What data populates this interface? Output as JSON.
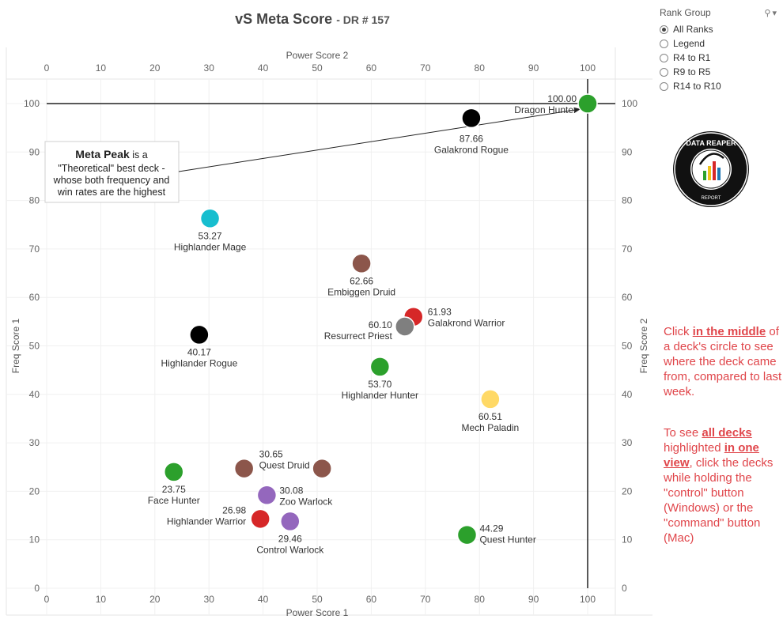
{
  "title": "vS Meta Score",
  "subtitle": "- DR # 157",
  "legend": {
    "heading": "Rank Group",
    "options": [
      "All Ranks",
      "Legend",
      "R4 to R1",
      "R9 to R5",
      "R14 to R10"
    ],
    "selected": "All Ranks"
  },
  "annotation": {
    "bold": "Meta Peak",
    "line1_rest": " is a",
    "line2": "\"Theoretical\" best deck -",
    "line3": "whose both frequency and",
    "line4": "win rates are the highest"
  },
  "logo_text": "DATA REAPER REPORT",
  "notes": {
    "n1": [
      "Click ",
      "in the middle",
      " of a deck's circle to see where the deck came from, compared to last week."
    ],
    "n2": [
      "To see ",
      "all decks ",
      " highlighted ",
      "in one view",
      ", click the decks while holding the \"control\" button (Windows) or the \"command\" button (Mac)"
    ]
  },
  "colors": {
    "hunter": "#2ca02c",
    "rogue": "#000000",
    "mage": "#17becf",
    "druid": "#8c564b",
    "warrior": "#d62728",
    "priest": "#7f7f7f",
    "paladin": "#ffd966",
    "warlock": "#9467bd",
    "note": "#e0464b"
  },
  "chart_data": {
    "type": "scatter",
    "title": "vS Meta Score - DR # 157",
    "xlabel": "Power Score 1",
    "xlabel_top": "Power Score 2",
    "ylabel": "Freq Score 1",
    "ylabel_right": "Freq Score 2",
    "xlim": [
      0,
      100
    ],
    "ylim": [
      0,
      100
    ],
    "xticks": [
      0,
      10,
      20,
      30,
      40,
      50,
      60,
      70,
      80,
      90,
      100
    ],
    "yticks": [
      0,
      10,
      20,
      30,
      40,
      50,
      60,
      70,
      80,
      90,
      100
    ],
    "grid": true,
    "reference_lines": {
      "x": 100,
      "y": 100
    },
    "points": [
      {
        "name": "Dragon Hunter",
        "score": "100.00",
        "x": 100,
        "y": 100,
        "class": "hunter"
      },
      {
        "name": "Galakrond Rogue",
        "score": "87.66",
        "x": 78.5,
        "y": 97,
        "class": "rogue"
      },
      {
        "name": "Highlander Mage",
        "score": "53.27",
        "x": 30.2,
        "y": 76.3,
        "class": "mage"
      },
      {
        "name": "Embiggen Druid",
        "score": "62.66",
        "x": 58.2,
        "y": 67,
        "class": "druid"
      },
      {
        "name": "Galakrond Warrior",
        "score": "61.93",
        "x": 67.8,
        "y": 56,
        "class": "warrior"
      },
      {
        "name": "Resurrect Priest",
        "score": "60.10",
        "x": 66.2,
        "y": 54,
        "class": "priest"
      },
      {
        "name": "Highlander Rogue",
        "score": "40.17",
        "x": 28.2,
        "y": 52.3,
        "class": "rogue"
      },
      {
        "name": "Highlander Hunter",
        "score": "53.70",
        "x": 61.6,
        "y": 45.7,
        "class": "hunter"
      },
      {
        "name": "Mech Paladin",
        "score": "60.51",
        "x": 82,
        "y": 39,
        "class": "paladin"
      },
      {
        "name": "Face Hunter",
        "score": "23.75",
        "x": 23.5,
        "y": 24,
        "class": "hunter"
      },
      {
        "name": "Quest Druid",
        "score": "30.65",
        "x": 36.5,
        "y": 24.7,
        "class": "druid"
      },
      {
        "name": "Quest Druid",
        "score": "",
        "x": 50.9,
        "y": 24.7,
        "class": "druid"
      },
      {
        "name": "Zoo Warlock",
        "score": "30.08",
        "x": 40.7,
        "y": 19.2,
        "class": "warlock"
      },
      {
        "name": "Highlander Warrior",
        "score": "26.98",
        "x": 39.5,
        "y": 14.3,
        "class": "warrior"
      },
      {
        "name": "Control Warlock",
        "score": "29.46",
        "x": 45,
        "y": 13.8,
        "class": "warlock"
      },
      {
        "name": "Quest Hunter",
        "score": "44.29",
        "x": 77.7,
        "y": 11,
        "class": "hunter"
      }
    ]
  }
}
